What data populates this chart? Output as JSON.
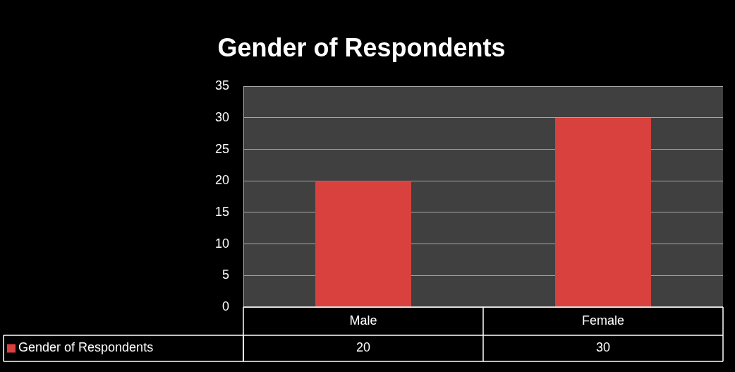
{
  "chart_data": {
    "type": "bar",
    "title": "Gender of Respondents",
    "categories": [
      "Male",
      "Female"
    ],
    "series": [
      {
        "name": "Gender of Respondents",
        "color": "#d9413e",
        "values": [
          20,
          30
        ]
      }
    ],
    "ylim": [
      0,
      35
    ],
    "yticks": [
      0,
      5,
      10,
      15,
      20,
      25,
      30,
      35
    ],
    "grid": "y",
    "legend": "bottom",
    "data_labels": true
  }
}
